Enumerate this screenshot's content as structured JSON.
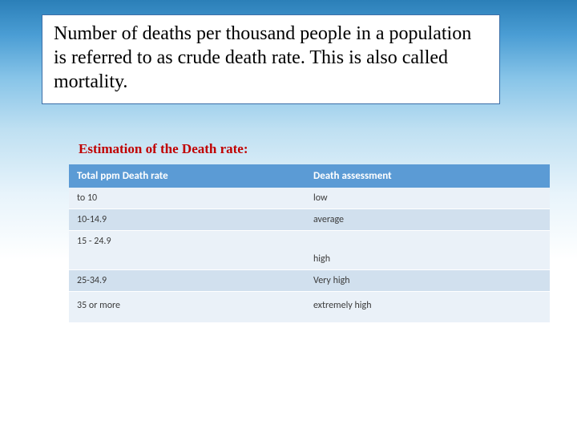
{
  "title": "Number of deaths per thousand people in a population is referred to as crude death rate. This is also called mortality.",
  "subtitle": "Estimation of the Death rate:",
  "table": {
    "type": "table",
    "header_bg": "#5b9bd5",
    "header_fg": "#ffffff",
    "row_light_bg": "#eaf1f8",
    "row_dark_bg": "#d1e0ee",
    "columns": [
      "Total ppm Death rate",
      "Death  assessment"
    ],
    "rows": [
      {
        "rate": "to 10",
        "assessment": " low"
      },
      {
        "rate": "10-14.9",
        "assessment": "average"
      },
      {
        "rate": "15 - 24.9",
        "assessment": "high"
      },
      {
        "rate": "25-34.9",
        "assessment": "Very high"
      },
      {
        "rate": "35 or more",
        "assessment": "extremely  high"
      }
    ]
  },
  "colors": {
    "title_border": "#3b6fa8",
    "title_bg": "#ffffff",
    "subtitle_color": "#c00000",
    "text_color": "#3b3b3b"
  }
}
